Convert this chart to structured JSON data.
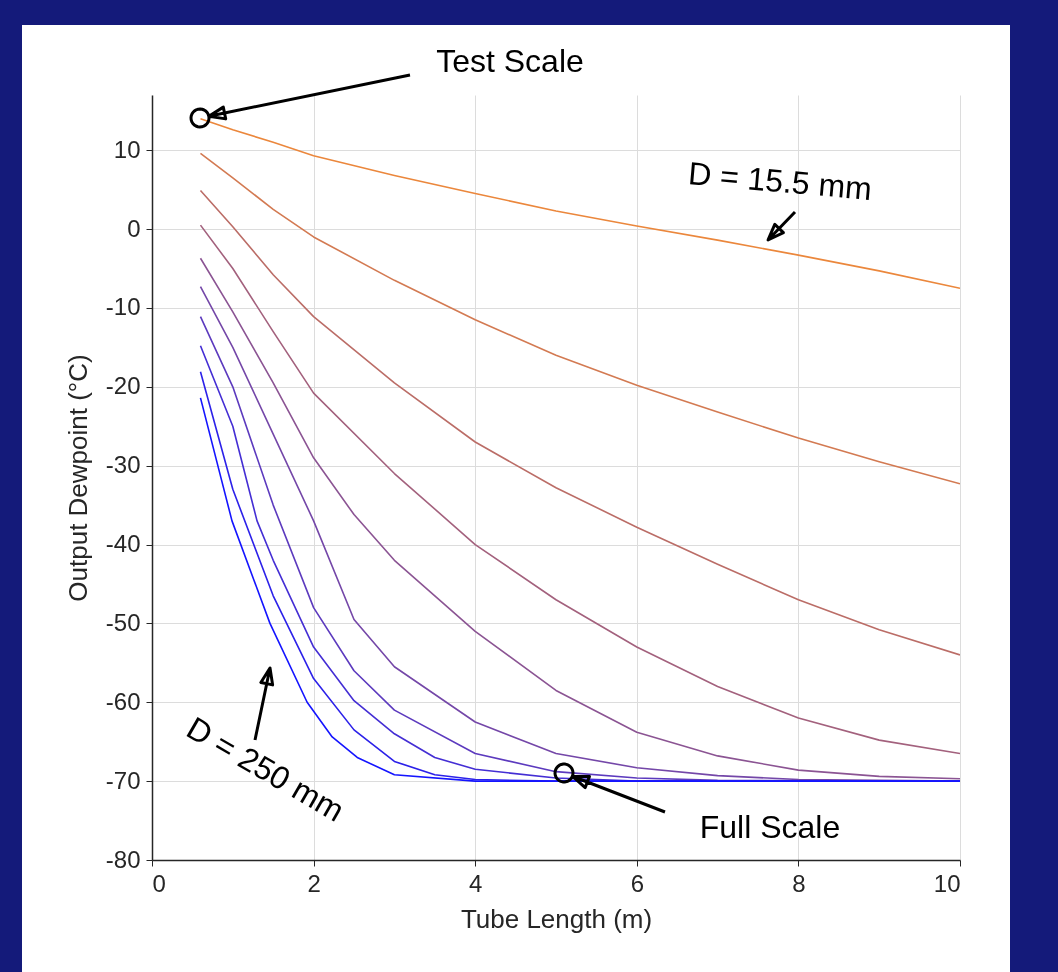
{
  "chart_data": {
    "type": "line",
    "xlabel": "Tube Length (m)",
    "ylabel": "Output Dewpoint (°C)",
    "xlim": [
      0,
      10
    ],
    "xticks": [
      0,
      2,
      4,
      6,
      8,
      10
    ],
    "ylim": [
      -80,
      17
    ],
    "yticks": [
      -80,
      -70,
      -60,
      -50,
      -40,
      -30,
      -20,
      -10,
      0,
      10
    ],
    "grid": true,
    "legend": false,
    "line_style": "solid",
    "series": [
      {
        "color": "#eb873c",
        "x": [
          0.6,
          1,
          1.5,
          2,
          3,
          4,
          5,
          6,
          7,
          8,
          9,
          10
        ],
        "values": [
          14,
          12.6,
          11,
          9.3,
          6.8,
          4.5,
          2.3,
          0.4,
          -1.4,
          -3.3,
          -5.3,
          -7.5
        ]
      },
      {
        "color": "#d37a52",
        "x": [
          0.6,
          1,
          1.5,
          2,
          3,
          4,
          5,
          6,
          7,
          8,
          9,
          10
        ],
        "values": [
          9.6,
          6.5,
          2.5,
          -1,
          -6.5,
          -11.5,
          -16,
          -19.8,
          -23.2,
          -26.5,
          -29.5,
          -32.3
        ]
      },
      {
        "color": "#bb6d67",
        "x": [
          0.6,
          1,
          1.5,
          2,
          3,
          4,
          5,
          6,
          7,
          8,
          9,
          10
        ],
        "values": [
          4.9,
          0.3,
          -5.8,
          -11.1,
          -19.5,
          -27,
          -32.8,
          -37.8,
          -42.5,
          -47,
          -50.8,
          -54
        ]
      },
      {
        "color": "#a3617d",
        "x": [
          0.6,
          1,
          1.5,
          2,
          3,
          4,
          5,
          6,
          7,
          8,
          9,
          10
        ],
        "values": [
          0.5,
          -5,
          -13,
          -20.8,
          -31,
          -40,
          -47,
          -53,
          -58,
          -62,
          -64.8,
          -66.5
        ]
      },
      {
        "color": "#8b5493",
        "x": [
          0.6,
          1,
          1.5,
          2,
          2.5,
          3,
          4,
          5,
          6,
          7,
          8,
          9,
          10
        ],
        "values": [
          -3.7,
          -10.5,
          -19.5,
          -29,
          -36.2,
          -42,
          -51,
          -58.5,
          -63.8,
          -66.8,
          -68.6,
          -69.4,
          -69.7
        ]
      },
      {
        "color": "#7447a8",
        "x": [
          0.6,
          1,
          1.5,
          2,
          2.5,
          3,
          4,
          5,
          6,
          7,
          8,
          10
        ],
        "values": [
          -7.3,
          -15,
          -26,
          -37,
          -49.5,
          -55.5,
          -62.5,
          -66.5,
          -68.3,
          -69.3,
          -69.8,
          -70
        ]
      },
      {
        "color": "#5c3abe",
        "x": [
          0.6,
          1,
          1.5,
          2,
          2.5,
          3,
          4,
          5,
          6,
          7,
          10
        ],
        "values": [
          -11.1,
          -20,
          -35,
          -48,
          -56,
          -61,
          -66.5,
          -68.8,
          -69.6,
          -69.9,
          -70
        ]
      },
      {
        "color": "#442ed4",
        "x": [
          0.6,
          1,
          1.3,
          1.5,
          2,
          2.5,
          3,
          3.5,
          4,
          5,
          6,
          10
        ],
        "values": [
          -14.8,
          -25,
          -37,
          -42,
          -53,
          -59.8,
          -64,
          -67,
          -68.5,
          -69.6,
          -70,
          -70
        ]
      },
      {
        "color": "#2c21e9",
        "x": [
          0.6,
          1,
          1.5,
          2,
          2.5,
          3,
          3.5,
          4,
          5,
          10
        ],
        "values": [
          -18.1,
          -33,
          -46.5,
          -57,
          -63.5,
          -67.5,
          -69.2,
          -69.8,
          -70,
          -70
        ]
      },
      {
        "color": "#1414ff",
        "x": [
          0.6,
          0.86,
          0.99,
          1.46,
          1.92,
          2.23,
          2.54,
          3,
          4,
          10
        ],
        "values": [
          -21.4,
          -31.8,
          -37,
          -50,
          -60,
          -64.4,
          -67,
          -69.2,
          -70,
          -70
        ]
      }
    ],
    "annotations": [
      "Test Scale",
      "D = 15.5 mm",
      "D = 250 mm",
      "Full Scale"
    ]
  }
}
